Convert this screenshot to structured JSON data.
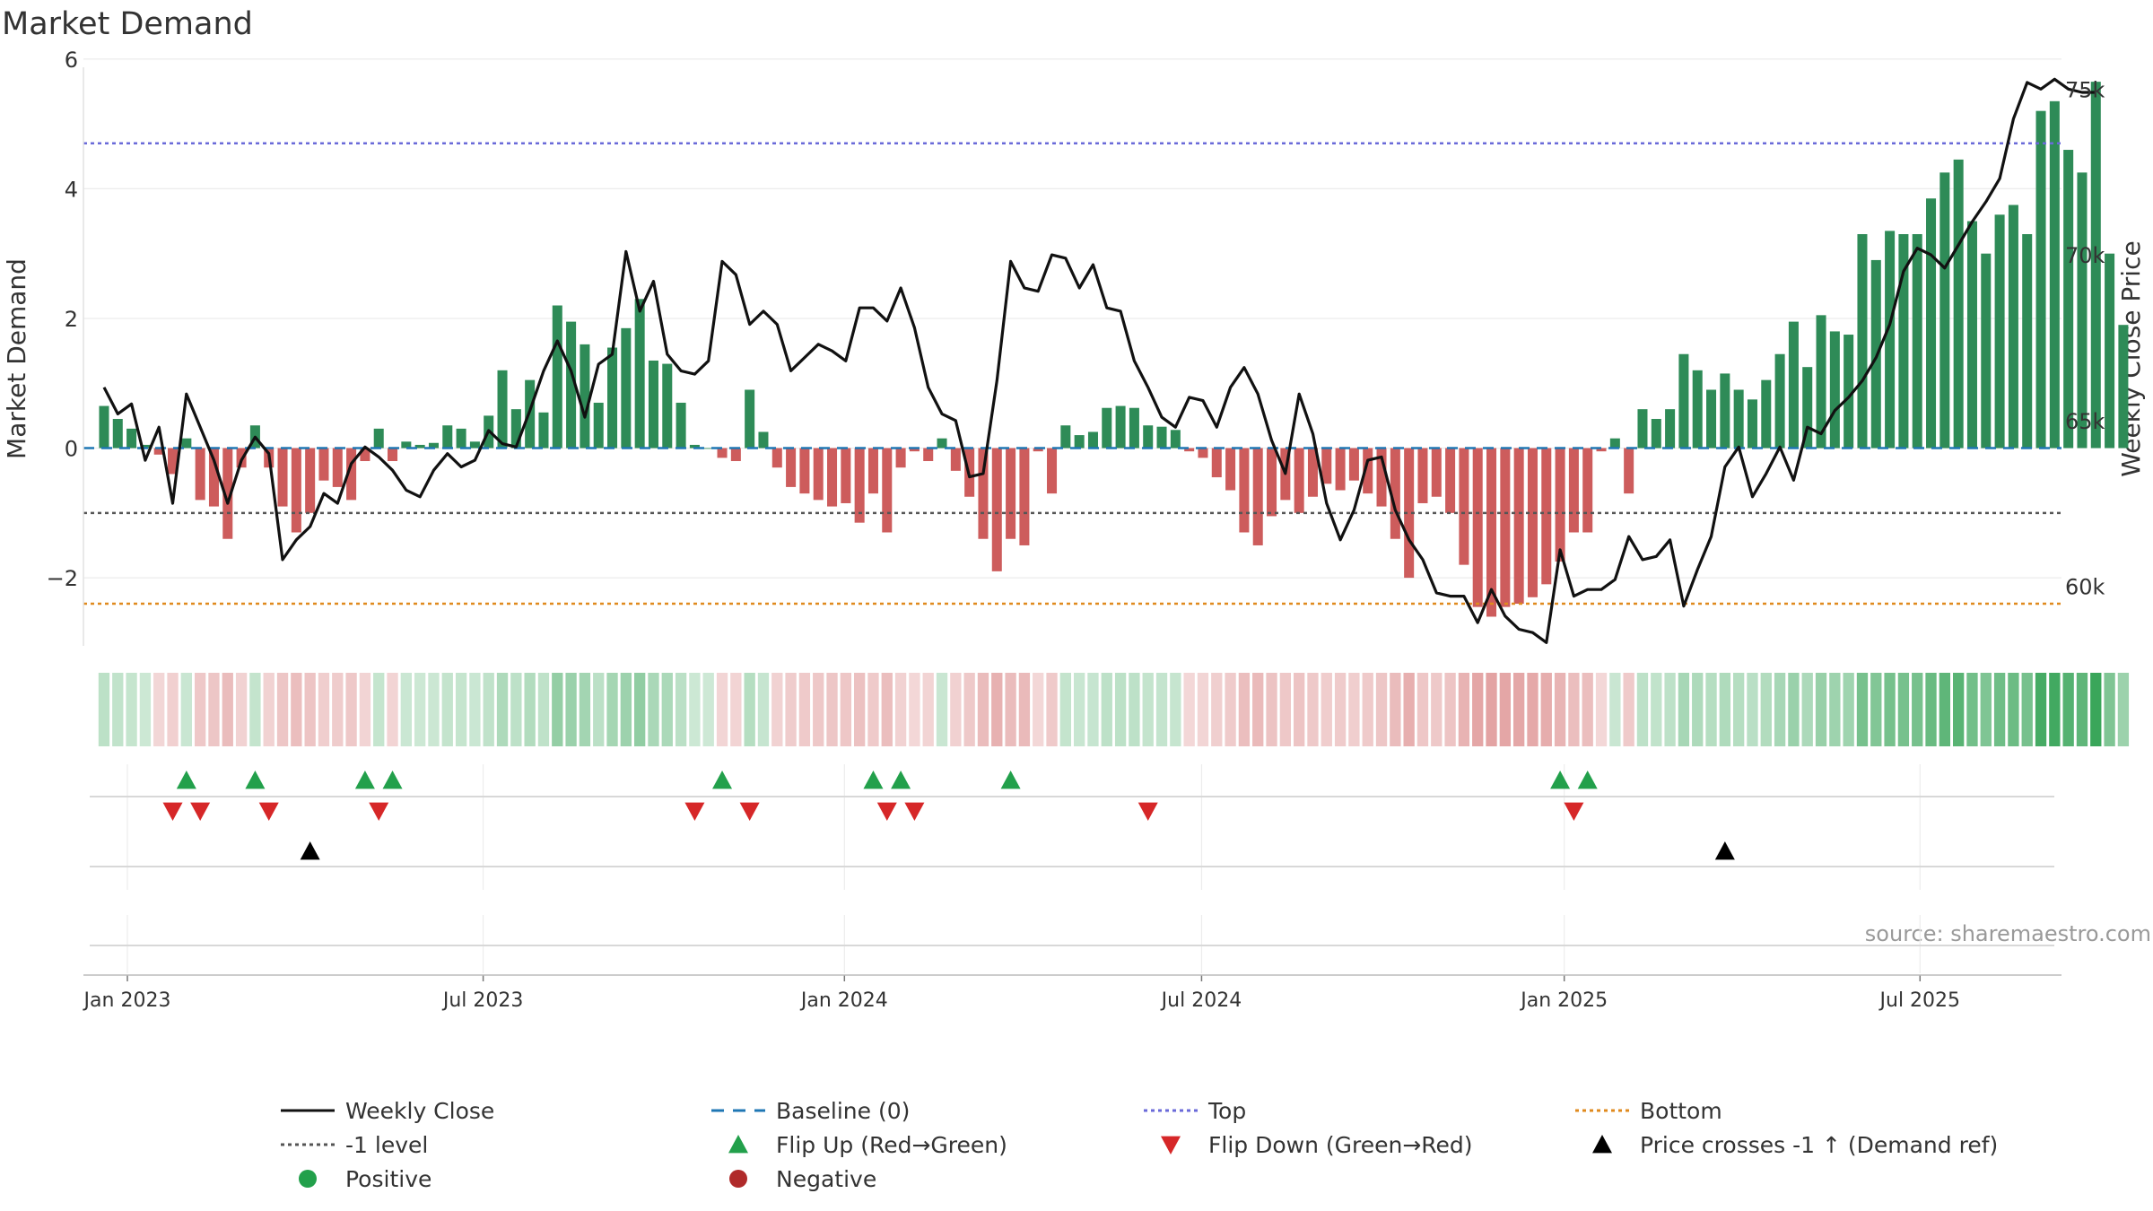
{
  "chart_data": {
    "type": "bar",
    "title": "Market Demand",
    "ylabel": "Market Demand",
    "y2label": "Weekly Close Price",
    "ylim": [
      -3.05,
      6.15
    ],
    "y2lim": [
      58200,
      76200
    ],
    "yticks": [
      -2,
      0,
      2,
      4,
      6
    ],
    "ytick_labels": [
      "−2",
      "0",
      "2",
      "4",
      "6"
    ],
    "y2ticks": [
      60000,
      65000,
      70000,
      75000
    ],
    "y2tick_labels": [
      "60k",
      "65k",
      "70k",
      "75k"
    ],
    "x_start_week": 0,
    "x_axis_range": [
      -1.5,
      142.5
    ],
    "x_ticks": [
      {
        "label": "Jan 2023",
        "pos": 1.7
      },
      {
        "label": "Jul 2023",
        "pos": 27.6
      },
      {
        "label": "Jan 2024",
        "pos": 53.9
      },
      {
        "label": "Jul 2024",
        "pos": 79.9
      },
      {
        "label": "Jan 2025",
        "pos": 106.3
      },
      {
        "label": "Jul 2025",
        "pos": 132.2
      }
    ],
    "reference_lines": {
      "baseline": 0,
      "top": 4.7,
      "bottom": -2.4,
      "minus_one_level": -1
    },
    "demand": [
      0.65,
      0.45,
      0.3,
      0.05,
      -0.1,
      -0.4,
      0.15,
      -0.8,
      -0.9,
      -1.4,
      -0.3,
      0.35,
      -0.3,
      -0.9,
      -1.3,
      -1.0,
      -0.5,
      -0.6,
      -0.8,
      -0.2,
      0.3,
      -0.2,
      0.1,
      0.05,
      0.08,
      0.35,
      0.3,
      0.1,
      0.5,
      1.2,
      0.6,
      1.05,
      0.55,
      2.2,
      1.95,
      1.6,
      0.7,
      1.55,
      1.85,
      2.3,
      1.35,
      1.3,
      0.7,
      0.05,
      0.0,
      -0.15,
      -0.2,
      0.9,
      0.25,
      -0.3,
      -0.6,
      -0.7,
      -0.8,
      -0.9,
      -0.85,
      -1.15,
      -0.7,
      -1.3,
      -0.3,
      -0.05,
      -0.2,
      0.15,
      -0.35,
      -0.75,
      -1.4,
      -1.9,
      -1.4,
      -1.5,
      -0.05,
      -0.7,
      0.35,
      0.2,
      0.25,
      0.62,
      0.65,
      0.62,
      0.35,
      0.33,
      0.28,
      -0.05,
      -0.15,
      -0.45,
      -0.65,
      -1.3,
      -1.5,
      -1.05,
      -0.8,
      -1.0,
      -0.75,
      -0.55,
      -0.65,
      -0.5,
      -0.7,
      -0.9,
      -1.4,
      -2.0,
      -0.85,
      -0.75,
      -1.0,
      -1.8,
      -2.45,
      -2.6,
      -2.45,
      -2.4,
      -2.3,
      -2.1,
      -1.75,
      -1.3,
      -1.3,
      -0.05,
      0.15,
      -0.7,
      0.6,
      0.45,
      0.6,
      1.45,
      1.2,
      0.9,
      1.15,
      0.9,
      0.75,
      1.05,
      1.45,
      1.95,
      1.25,
      2.05,
      1.8,
      1.75,
      3.3,
      2.9,
      3.35,
      3.3,
      3.3,
      3.85,
      4.25,
      4.45,
      3.5,
      3.0,
      3.6,
      3.75,
      3.3,
      5.2,
      5.35,
      4.6,
      4.25,
      5.65,
      3.0,
      1.9
    ],
    "weekly_close": [
      66000,
      65200,
      65500,
      63800,
      64800,
      62500,
      65800,
      64800,
      63800,
      62500,
      63800,
      64500,
      64000,
      60800,
      61400,
      61800,
      62800,
      62500,
      63700,
      64200,
      63900,
      63500,
      62900,
      62700,
      63500,
      64000,
      63600,
      63800,
      64700,
      64300,
      64200,
      65300,
      66500,
      67400,
      66500,
      65100,
      66700,
      67000,
      70100,
      68300,
      69200,
      67000,
      66500,
      66400,
      66800,
      69800,
      69400,
      67900,
      68300,
      67900,
      66500,
      66900,
      67300,
      67100,
      66800,
      68400,
      68400,
      68000,
      69000,
      67800,
      66000,
      65200,
      65000,
      63300,
      63400,
      66200,
      69800,
      69000,
      68900,
      70000,
      69900,
      69000,
      69700,
      68400,
      68300,
      66800,
      66000,
      65100,
      64800,
      65700,
      65600,
      64800,
      66000,
      66600,
      65800,
      64400,
      63400,
      65800,
      64600,
      62500,
      61400,
      62300,
      63800,
      63900,
      62300,
      61400,
      60800,
      59800,
      59700,
      59700,
      58900,
      59900,
      59100,
      58700,
      58600,
      58300,
      61100,
      59700,
      59900,
      59900,
      60200,
      61500,
      60800,
      60900,
      61400,
      59400,
      60500,
      61500,
      63600,
      64200,
      62700,
      63400,
      64200,
      63200,
      64800,
      64600,
      65300,
      65700,
      66200,
      66900,
      67900,
      69500,
      70200,
      70000,
      69600,
      70300,
      71000,
      71600,
      72300,
      74100,
      75200,
      75000,
      75300,
      75000,
      74900,
      74900
    ],
    "flip_up": [
      6,
      11,
      19,
      21,
      45,
      56,
      58,
      66,
      106,
      108
    ],
    "flip_down": [
      5,
      7,
      12,
      20,
      43,
      47,
      57,
      59,
      76,
      107
    ],
    "price_crosses_minus1_up": [
      15,
      118
    ],
    "legend": {
      "weekly_close": "Weekly Close",
      "baseline": "Baseline (0)",
      "top": "Top",
      "bottom": "Bottom",
      "minus_one": "-1 level",
      "flip_up": "Flip Up (Red→Green)",
      "flip_down": "Flip Down (Green→Red)",
      "price_cross": "Price crosses -1 ↑ (Demand ref)",
      "positive": "Positive",
      "negative": "Negative"
    },
    "colors": {
      "positive": "#2e8b57",
      "negative": "#cd5c5c",
      "price": "#111111",
      "baseline": "#1f77b4",
      "top": "#6a6ad9",
      "bottom": "#e08a1e",
      "minus_one": "#555555",
      "flip_up": "#22a04b",
      "flip_down": "#d62728",
      "cross": "#000000",
      "legend_positive": "#22a04b",
      "legend_negative": "#b02a2a"
    },
    "source": "source: sharemaestro.com"
  }
}
